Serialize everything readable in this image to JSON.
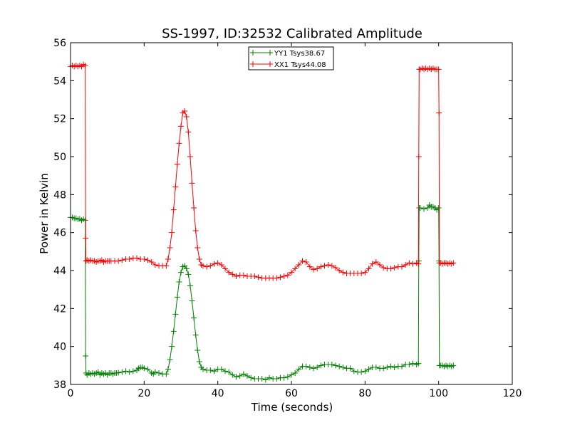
{
  "chart_data": {
    "type": "line",
    "title": "SS-1997, ID:32532 Calibrated Amplitude",
    "xlabel": "Time (seconds)",
    "ylabel": "Power in Kelvin",
    "xlim": [
      0,
      120
    ],
    "ylim": [
      38,
      56
    ],
    "x_ticks": [
      0,
      20,
      40,
      60,
      80,
      100,
      120
    ],
    "y_ticks": [
      38,
      40,
      42,
      44,
      46,
      48,
      50,
      52,
      54,
      56
    ],
    "x_tick_labels": [
      "0",
      "20",
      "40",
      "60",
      "80",
      "100",
      "120"
    ],
    "y_tick_labels": [
      "38",
      "40",
      "42",
      "44",
      "46",
      "48",
      "50",
      "52",
      "54",
      "56"
    ],
    "grid": false,
    "legend_position": "top-center",
    "series": [
      {
        "name": "YY1 Tsys38.67",
        "color": "#008000",
        "marker": "plus",
        "points": [
          [
            0.0,
            46.8
          ],
          [
            0.5,
            46.8
          ],
          [
            1.0,
            46.75
          ],
          [
            1.5,
            46.75
          ],
          [
            2.0,
            46.7
          ],
          [
            2.5,
            46.72
          ],
          [
            3.0,
            46.65
          ],
          [
            3.5,
            46.7
          ],
          [
            4.0,
            46.65
          ],
          [
            4.1,
            39.5
          ],
          [
            4.2,
            38.6
          ],
          [
            4.5,
            38.5
          ],
          [
            5.0,
            38.6
          ],
          [
            5.5,
            38.55
          ],
          [
            6.0,
            38.6
          ],
          [
            6.5,
            38.55
          ],
          [
            7.0,
            38.6
          ],
          [
            7.5,
            38.65
          ],
          [
            8.0,
            38.5
          ],
          [
            8.5,
            38.6
          ],
          [
            9.0,
            38.55
          ],
          [
            9.5,
            38.6
          ],
          [
            10.0,
            38.5
          ],
          [
            10.5,
            38.6
          ],
          [
            11.0,
            38.6
          ],
          [
            11.5,
            38.55
          ],
          [
            12.0,
            38.6
          ],
          [
            12.5,
            38.6
          ],
          [
            13.0,
            38.62
          ],
          [
            14.0,
            38.65
          ],
          [
            15.0,
            38.7
          ],
          [
            16.0,
            38.65
          ],
          [
            17.0,
            38.7
          ],
          [
            18.0,
            38.75
          ],
          [
            18.5,
            38.85
          ],
          [
            19.0,
            38.9
          ],
          [
            19.5,
            38.9
          ],
          [
            20.0,
            38.85
          ],
          [
            21.0,
            38.8
          ],
          [
            22.0,
            38.6
          ],
          [
            22.5,
            38.55
          ],
          [
            23.0,
            38.65
          ],
          [
            24.0,
            38.6
          ],
          [
            25.0,
            38.55
          ],
          [
            26.0,
            38.55
          ],
          [
            26.5,
            38.8
          ],
          [
            27.0,
            39.3
          ],
          [
            27.5,
            40.0
          ],
          [
            28.0,
            40.8
          ],
          [
            28.5,
            41.7
          ],
          [
            29.0,
            42.6
          ],
          [
            29.5,
            43.4
          ],
          [
            30.0,
            43.9
          ],
          [
            30.5,
            44.2
          ],
          [
            31.0,
            44.25
          ],
          [
            31.5,
            44.1
          ],
          [
            32.0,
            43.8
          ],
          [
            32.5,
            43.2
          ],
          [
            33.0,
            42.4
          ],
          [
            33.5,
            41.5
          ],
          [
            34.0,
            40.6
          ],
          [
            34.5,
            39.8
          ],
          [
            35.0,
            39.2
          ],
          [
            35.5,
            38.9
          ],
          [
            36.0,
            38.8
          ],
          [
            37.0,
            38.75
          ],
          [
            38.0,
            38.75
          ],
          [
            39.0,
            38.7
          ],
          [
            40.0,
            38.8
          ],
          [
            41.0,
            38.8
          ],
          [
            42.0,
            38.7
          ],
          [
            43.0,
            38.65
          ],
          [
            44.0,
            38.5
          ],
          [
            45.0,
            38.4
          ],
          [
            46.0,
            38.45
          ],
          [
            47.0,
            38.55
          ],
          [
            48.0,
            38.45
          ],
          [
            49.0,
            38.35
          ],
          [
            50.0,
            38.3
          ],
          [
            51.0,
            38.3
          ],
          [
            52.0,
            38.3
          ],
          [
            53.0,
            38.25
          ],
          [
            54.0,
            38.35
          ],
          [
            55.0,
            38.3
          ],
          [
            56.0,
            38.3
          ],
          [
            57.0,
            38.35
          ],
          [
            58.0,
            38.35
          ],
          [
            59.0,
            38.4
          ],
          [
            60.0,
            38.5
          ],
          [
            61.0,
            38.6
          ],
          [
            62.0,
            38.8
          ],
          [
            63.0,
            38.95
          ],
          [
            64.0,
            38.95
          ],
          [
            65.0,
            38.9
          ],
          [
            66.0,
            38.85
          ],
          [
            67.0,
            38.9
          ],
          [
            68.0,
            39.0
          ],
          [
            69.0,
            39.05
          ],
          [
            70.0,
            39.05
          ],
          [
            71.0,
            39.05
          ],
          [
            72.0,
            39.0
          ],
          [
            73.0,
            38.95
          ],
          [
            74.0,
            38.9
          ],
          [
            75.0,
            38.85
          ],
          [
            76.0,
            38.85
          ],
          [
            77.0,
            38.7
          ],
          [
            78.0,
            38.65
          ],
          [
            79.0,
            38.65
          ],
          [
            80.0,
            38.7
          ],
          [
            81.0,
            38.8
          ],
          [
            82.0,
            38.9
          ],
          [
            83.0,
            38.9
          ],
          [
            84.0,
            38.85
          ],
          [
            85.0,
            38.85
          ],
          [
            86.0,
            38.9
          ],
          [
            87.0,
            38.95
          ],
          [
            88.0,
            38.9
          ],
          [
            89.0,
            38.95
          ],
          [
            90.0,
            38.95
          ],
          [
            91.0,
            39.05
          ],
          [
            92.0,
            39.05
          ],
          [
            93.0,
            39.1
          ],
          [
            94.0,
            39.05
          ],
          [
            94.5,
            39.1
          ],
          [
            94.6,
            44.5
          ],
          [
            94.7,
            47.3
          ],
          [
            95.0,
            47.3
          ],
          [
            96.0,
            47.25
          ],
          [
            97.0,
            47.3
          ],
          [
            97.5,
            47.45
          ],
          [
            98.0,
            47.35
          ],
          [
            98.5,
            47.35
          ],
          [
            99.0,
            47.3
          ],
          [
            99.5,
            47.2
          ],
          [
            100.0,
            47.3
          ],
          [
            100.1,
            44.5
          ],
          [
            100.2,
            39.0
          ],
          [
            100.5,
            39.0
          ],
          [
            101.0,
            39.0
          ],
          [
            101.5,
            38.95
          ],
          [
            102.0,
            39.0
          ],
          [
            102.5,
            38.95
          ],
          [
            103.0,
            39.0
          ],
          [
            103.5,
            38.95
          ],
          [
            104.0,
            39.0
          ]
        ]
      },
      {
        "name": "XX1 Tsys44.08",
        "color": "#ff0000",
        "marker": "plus",
        "points": [
          [
            0.0,
            54.75
          ],
          [
            0.5,
            54.8
          ],
          [
            1.0,
            54.75
          ],
          [
            1.5,
            54.8
          ],
          [
            2.0,
            54.75
          ],
          [
            2.5,
            54.8
          ],
          [
            3.0,
            54.75
          ],
          [
            3.5,
            54.85
          ],
          [
            4.0,
            54.8
          ],
          [
            4.1,
            45.7
          ],
          [
            4.2,
            44.5
          ],
          [
            4.5,
            44.55
          ],
          [
            5.0,
            44.5
          ],
          [
            5.5,
            44.55
          ],
          [
            6.0,
            44.5
          ],
          [
            6.5,
            44.5
          ],
          [
            7.0,
            44.45
          ],
          [
            7.5,
            44.5
          ],
          [
            8.0,
            44.5
          ],
          [
            8.5,
            44.55
          ],
          [
            9.0,
            44.45
          ],
          [
            9.5,
            44.5
          ],
          [
            10.0,
            44.5
          ],
          [
            10.5,
            44.5
          ],
          [
            11.0,
            44.5
          ],
          [
            12.0,
            44.5
          ],
          [
            13.0,
            44.5
          ],
          [
            14.0,
            44.55
          ],
          [
            15.0,
            44.6
          ],
          [
            16.0,
            44.6
          ],
          [
            17.0,
            44.65
          ],
          [
            18.0,
            44.65
          ],
          [
            19.0,
            44.6
          ],
          [
            20.0,
            44.6
          ],
          [
            21.0,
            44.55
          ],
          [
            22.0,
            44.45
          ],
          [
            23.0,
            44.3
          ],
          [
            24.0,
            44.25
          ],
          [
            25.0,
            44.25
          ],
          [
            26.0,
            44.25
          ],
          [
            26.5,
            44.6
          ],
          [
            27.0,
            45.2
          ],
          [
            27.5,
            46.0
          ],
          [
            28.0,
            47.2
          ],
          [
            28.5,
            48.4
          ],
          [
            29.0,
            49.6
          ],
          [
            29.5,
            50.7
          ],
          [
            30.0,
            51.6
          ],
          [
            30.5,
            52.3
          ],
          [
            31.0,
            52.4
          ],
          [
            31.5,
            52.1
          ],
          [
            32.0,
            51.3
          ],
          [
            32.5,
            50.0
          ],
          [
            33.0,
            48.6
          ],
          [
            33.5,
            47.3
          ],
          [
            34.0,
            46.1
          ],
          [
            34.5,
            45.2
          ],
          [
            35.0,
            44.6
          ],
          [
            35.5,
            44.3
          ],
          [
            36.0,
            44.25
          ],
          [
            37.0,
            44.2
          ],
          [
            38.0,
            44.25
          ],
          [
            39.0,
            44.35
          ],
          [
            40.0,
            44.4
          ],
          [
            41.0,
            44.3
          ],
          [
            42.0,
            44.1
          ],
          [
            43.0,
            43.9
          ],
          [
            44.0,
            43.8
          ],
          [
            45.0,
            43.7
          ],
          [
            46.0,
            43.75
          ],
          [
            47.0,
            43.75
          ],
          [
            48.0,
            43.7
          ],
          [
            49.0,
            43.7
          ],
          [
            50.0,
            43.7
          ],
          [
            51.0,
            43.65
          ],
          [
            52.0,
            43.6
          ],
          [
            53.0,
            43.6
          ],
          [
            54.0,
            43.6
          ],
          [
            55.0,
            43.6
          ],
          [
            56.0,
            43.6
          ],
          [
            57.0,
            43.65
          ],
          [
            58.0,
            43.7
          ],
          [
            59.0,
            43.75
          ],
          [
            60.0,
            43.9
          ],
          [
            61.0,
            44.1
          ],
          [
            62.0,
            44.3
          ],
          [
            63.0,
            44.5
          ],
          [
            64.0,
            44.45
          ],
          [
            65.0,
            44.2
          ],
          [
            66.0,
            44.05
          ],
          [
            67.0,
            44.1
          ],
          [
            68.0,
            44.2
          ],
          [
            69.0,
            44.25
          ],
          [
            70.0,
            44.3
          ],
          [
            71.0,
            44.25
          ],
          [
            72.0,
            44.15
          ],
          [
            73.0,
            44.0
          ],
          [
            74.0,
            43.9
          ],
          [
            75.0,
            43.85
          ],
          [
            76.0,
            43.85
          ],
          [
            77.0,
            43.85
          ],
          [
            78.0,
            43.85
          ],
          [
            79.0,
            43.85
          ],
          [
            80.0,
            43.9
          ],
          [
            81.0,
            44.1
          ],
          [
            82.0,
            44.35
          ],
          [
            83.0,
            44.45
          ],
          [
            84.0,
            44.3
          ],
          [
            85.0,
            44.15
          ],
          [
            86.0,
            44.1
          ],
          [
            87.0,
            44.1
          ],
          [
            88.0,
            44.15
          ],
          [
            89.0,
            44.2
          ],
          [
            90.0,
            44.2
          ],
          [
            91.0,
            44.3
          ],
          [
            92.0,
            44.4
          ],
          [
            93.0,
            44.35
          ],
          [
            94.0,
            44.4
          ],
          [
            94.5,
            44.35
          ],
          [
            94.6,
            50.0
          ],
          [
            94.7,
            54.6
          ],
          [
            95.0,
            54.6
          ],
          [
            95.5,
            54.65
          ],
          [
            96.0,
            54.6
          ],
          [
            96.5,
            54.65
          ],
          [
            97.0,
            54.6
          ],
          [
            97.5,
            54.65
          ],
          [
            98.0,
            54.6
          ],
          [
            98.5,
            54.65
          ],
          [
            99.0,
            54.6
          ],
          [
            99.5,
            54.6
          ],
          [
            100.0,
            54.6
          ],
          [
            100.1,
            52.3
          ],
          [
            100.2,
            44.4
          ],
          [
            100.5,
            44.4
          ],
          [
            101.0,
            44.35
          ],
          [
            101.5,
            44.4
          ],
          [
            102.0,
            44.4
          ],
          [
            102.5,
            44.35
          ],
          [
            103.0,
            44.4
          ],
          [
            103.5,
            44.35
          ],
          [
            104.0,
            44.4
          ]
        ]
      }
    ]
  }
}
